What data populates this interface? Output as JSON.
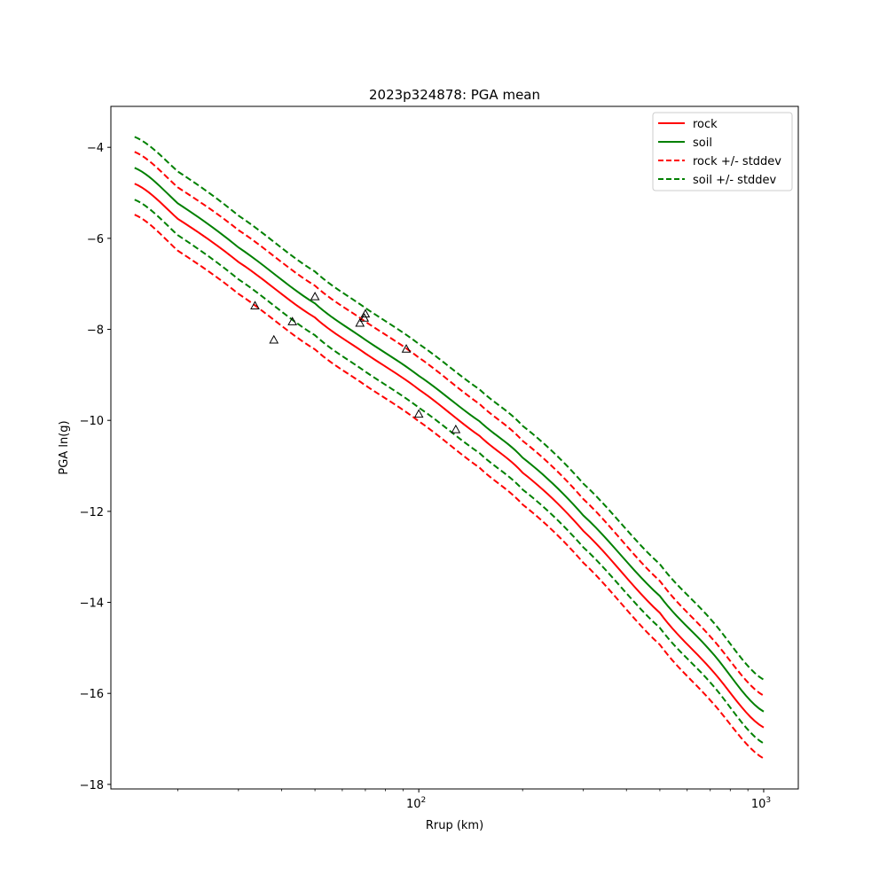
{
  "chart_data": {
    "type": "line",
    "title": "2023p324878: PGA mean",
    "xlabel": "Rrup (km)",
    "ylabel": "PGA ln(g)",
    "xscale": "log",
    "xlim": [
      12.8,
      1260
    ],
    "ylim": [
      -18.1,
      -3.1
    ],
    "yticks": [
      -18,
      -16,
      -14,
      -12,
      -10,
      -8,
      -6,
      -4
    ],
    "ytick_labels": [
      "−18",
      "−16",
      "−14",
      "−12",
      "−10",
      "−8",
      "−6",
      "−4"
    ],
    "xticks_major": [
      {
        "value": 100,
        "base": "10",
        "exp": "2"
      },
      {
        "value": 1000,
        "base": "10",
        "exp": "3"
      }
    ],
    "xticks_minor": [
      20,
      30,
      40,
      50,
      60,
      70,
      80,
      90,
      200,
      300,
      400,
      500,
      600,
      700,
      800,
      900
    ],
    "grid": false,
    "legend_position": "top-right",
    "colors": {
      "rock": "#ff0000",
      "soil": "#008000",
      "markers": "#000000"
    },
    "series": [
      {
        "name": "rock",
        "color": "#ff0000",
        "style": "solid",
        "x": [
          15,
          20,
          30,
          50,
          70,
          100,
          150,
          200,
          300,
          500,
          700,
          1000
        ],
        "y": [
          -4.8,
          -5.57,
          -6.52,
          -7.74,
          -8.53,
          -9.32,
          -10.34,
          -11.15,
          -12.43,
          -14.23,
          -15.45,
          -16.75
        ]
      },
      {
        "name": "soil",
        "color": "#008000",
        "style": "solid",
        "x": [
          15,
          20,
          30,
          50,
          70,
          100,
          150,
          200,
          300,
          500,
          700,
          1000
        ],
        "y": [
          -4.45,
          -5.23,
          -6.2,
          -7.43,
          -8.23,
          -9.02,
          -10.02,
          -10.82,
          -12.09,
          -13.86,
          -15.06,
          -16.4
        ]
      },
      {
        "name": "rock +/- stddev",
        "color": "#ff0000",
        "style": "dashed",
        "x": [
          15,
          20,
          30,
          50,
          70,
          100,
          150,
          200,
          300,
          500,
          700,
          1000
        ],
        "y": [
          -4.1,
          -4.88,
          -5.82,
          -7.04,
          -7.83,
          -8.62,
          -9.64,
          -10.45,
          -11.73,
          -13.53,
          -14.75,
          -16.05
        ]
      },
      {
        "name": "",
        "color": "#ff0000",
        "style": "dashed",
        "x": [
          15,
          20,
          30,
          50,
          70,
          100,
          150,
          200,
          300,
          500,
          700,
          1000
        ],
        "y": [
          -5.48,
          -6.27,
          -7.22,
          -8.44,
          -9.23,
          -10.02,
          -11.04,
          -11.85,
          -13.13,
          -14.93,
          -16.15,
          -17.43
        ]
      },
      {
        "name": "soil +/- stddev",
        "color": "#008000",
        "style": "dashed",
        "x": [
          15,
          20,
          30,
          50,
          70,
          100,
          150,
          200,
          300,
          500,
          700,
          1000
        ],
        "y": [
          -3.77,
          -4.53,
          -5.5,
          -6.73,
          -7.53,
          -8.32,
          -9.32,
          -10.12,
          -11.39,
          -13.16,
          -14.36,
          -15.7
        ]
      },
      {
        "name": "",
        "color": "#008000",
        "style": "dashed",
        "x": [
          15,
          20,
          30,
          50,
          70,
          100,
          150,
          200,
          300,
          500,
          700,
          1000
        ],
        "y": [
          -5.15,
          -5.93,
          -6.9,
          -8.13,
          -8.93,
          -9.72,
          -10.72,
          -11.52,
          -12.79,
          -14.56,
          -15.76,
          -17.1
        ]
      }
    ],
    "points": {
      "marker": "triangle-open",
      "x": [
        33.5,
        38,
        43,
        50,
        67.5,
        69.5,
        70,
        92,
        100,
        128
      ],
      "y": [
        -7.48,
        -8.23,
        -7.83,
        -7.28,
        -7.86,
        -7.75,
        -7.66,
        -8.43,
        -9.86,
        -10.2
      ]
    }
  }
}
